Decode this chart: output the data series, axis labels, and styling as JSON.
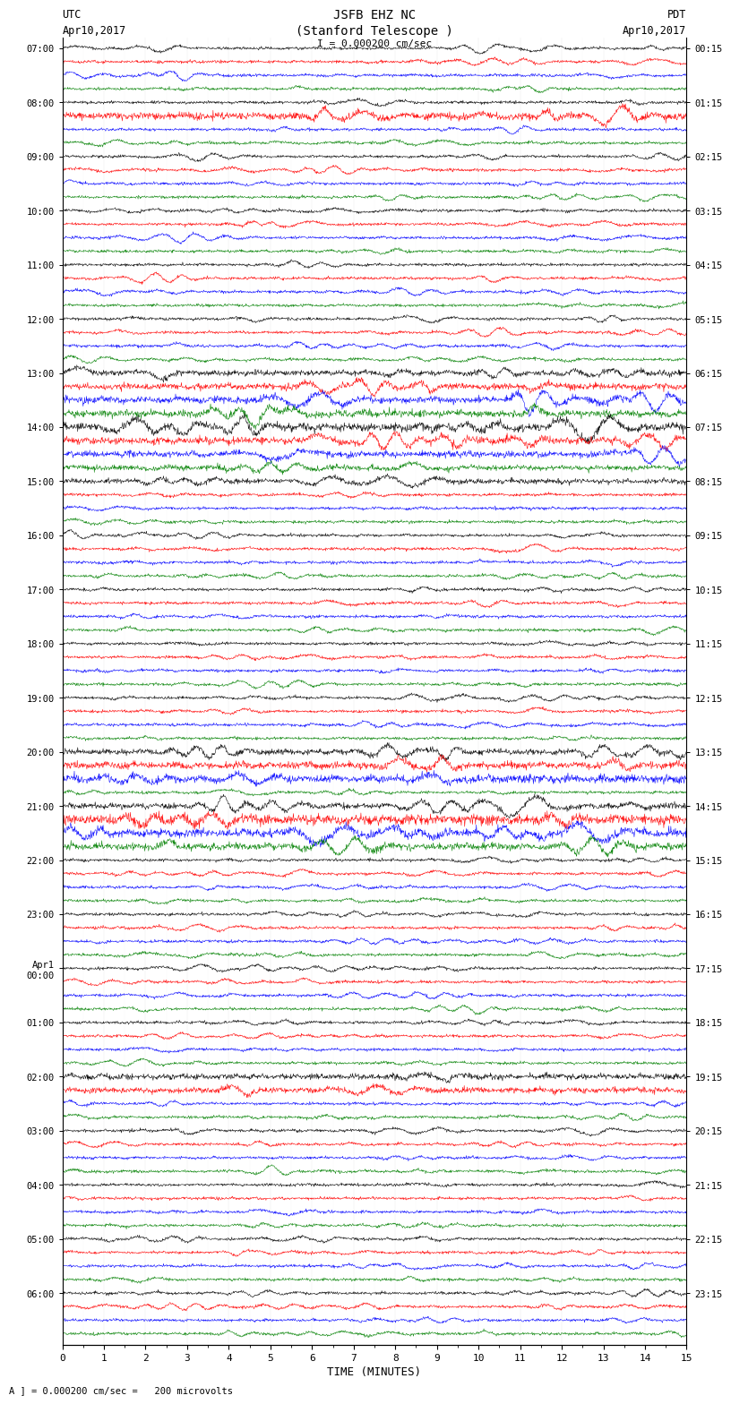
{
  "title_line1": "JSFB EHZ NC",
  "title_line2": "(Stanford Telescope )",
  "scale_label": "I = 0.000200 cm/sec",
  "left_label_top": "UTC",
  "left_label_date": "Apr10,2017",
  "right_label_top": "PDT",
  "right_label_date": "Apr10,2017",
  "bottom_label": "TIME (MINUTES)",
  "footnote": "A ] = 0.000200 cm/sec =   200 microvolts",
  "utc_hour_labels": [
    "07:00",
    "08:00",
    "09:00",
    "10:00",
    "11:00",
    "12:00",
    "13:00",
    "14:00",
    "15:00",
    "16:00",
    "17:00",
    "18:00",
    "19:00",
    "20:00",
    "21:00",
    "22:00",
    "23:00",
    "Apr1\n00:00",
    "01:00",
    "02:00",
    "03:00",
    "04:00",
    "05:00",
    "06:00"
  ],
  "pdt_hour_labels": [
    "00:15",
    "01:15",
    "02:15",
    "03:15",
    "04:15",
    "05:15",
    "06:15",
    "07:15",
    "08:15",
    "09:15",
    "10:15",
    "11:15",
    "12:15",
    "13:15",
    "14:15",
    "15:15",
    "16:15",
    "17:15",
    "18:15",
    "19:15",
    "20:15",
    "21:15",
    "22:15",
    "23:15"
  ],
  "num_hours": 24,
  "traces_per_hour": 4,
  "colors_cycle": [
    "black",
    "red",
    "blue",
    "green"
  ],
  "trace_amplitude": 0.28,
  "noise_base": 0.05,
  "background_color": "white",
  "trace_linewidth": 0.4,
  "xmin": 0,
  "xmax": 15,
  "xticks": [
    0,
    1,
    2,
    3,
    4,
    5,
    6,
    7,
    8,
    9,
    10,
    11,
    12,
    13,
    14,
    15
  ],
  "high_amp_rows": {
    "5": 2.5,
    "24": 2.0,
    "25": 2.2,
    "26": 2.5,
    "27": 2.5,
    "28": 2.8,
    "29": 2.5,
    "30": 2.2,
    "31": 2.0,
    "32": 1.8,
    "52": 2.0,
    "53": 2.5,
    "54": 2.8,
    "56": 2.0,
    "57": 3.5,
    "58": 3.0,
    "59": 2.5,
    "76": 2.0,
    "77": 2.0
  }
}
